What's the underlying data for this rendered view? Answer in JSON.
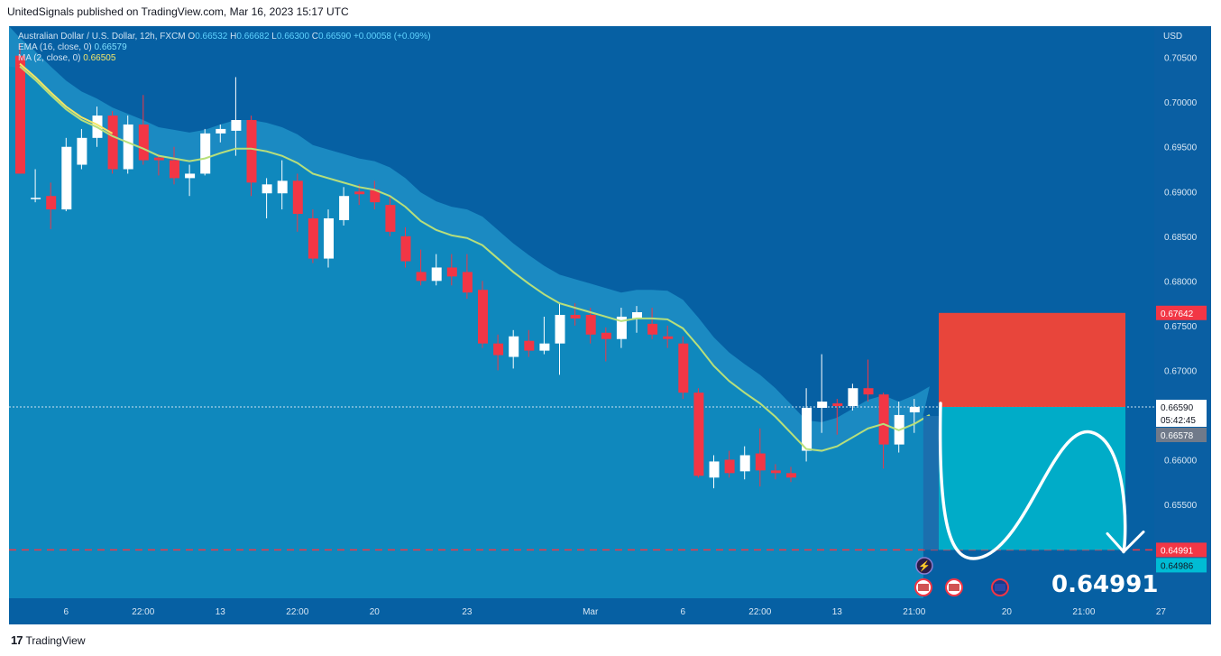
{
  "header": {
    "publish_text": "UnitedSignals published on TradingView.com, Mar 16, 2023 15:17 UTC"
  },
  "footer": {
    "brand": "TradingView"
  },
  "legend": {
    "symbol": "Australian Dollar / U.S. Dollar, 12h, FXCM",
    "o_label": "O",
    "o_value": "0.66532",
    "h_label": "H",
    "h_value": "0.66682",
    "l_label": "L",
    "l_value": "0.66300",
    "c_label": "C",
    "c_value": "0.66590",
    "change": "+0.00058 (+0.09%)",
    "ema_label": "EMA (16, close, 0)",
    "ema_value": "0.66579",
    "ma_label": "MA (2, close, 0)",
    "ma_value": "0.66505"
  },
  "colors": {
    "up": "#ffffff",
    "down": "#f23645",
    "ema": "#b7e07a",
    "ma": "#f5e663",
    "stop": "#f23645",
    "target": "#00bcd4"
  },
  "chart_data": {
    "type": "candlestick",
    "currency": "USD",
    "ylim": [
      0.6445,
      0.7085
    ],
    "y_ticks": [
      "0.70500",
      "0.70000",
      "0.69500",
      "0.69000",
      "0.68500",
      "0.68000",
      "0.67500",
      "0.67000",
      "0.66500",
      "0.66000",
      "0.65500"
    ],
    "x_ticks": [
      "6",
      "22:00",
      "13",
      "22:00",
      "20",
      "23",
      "Mar",
      "6",
      "22:00",
      "13",
      "21:00",
      "20",
      "21:00",
      "27"
    ],
    "candles": [
      {
        "o": 0.7052,
        "h": 0.7065,
        "l": 0.692,
        "c": 0.692
      },
      {
        "o": 0.6893,
        "h": 0.6925,
        "l": 0.6888,
        "c": 0.6893
      },
      {
        "o": 0.6895,
        "h": 0.691,
        "l": 0.6858,
        "c": 0.688
      },
      {
        "o": 0.688,
        "h": 0.696,
        "l": 0.6878,
        "c": 0.695
      },
      {
        "o": 0.693,
        "h": 0.697,
        "l": 0.6925,
        "c": 0.696
      },
      {
        "o": 0.696,
        "h": 0.6995,
        "l": 0.695,
        "c": 0.6985
      },
      {
        "o": 0.6985,
        "h": 0.699,
        "l": 0.692,
        "c": 0.6925
      },
      {
        "o": 0.6925,
        "h": 0.6985,
        "l": 0.692,
        "c": 0.6975
      },
      {
        "o": 0.6975,
        "h": 0.7008,
        "l": 0.693,
        "c": 0.6935
      },
      {
        "o": 0.6938,
        "h": 0.6942,
        "l": 0.6918,
        "c": 0.6935
      },
      {
        "o": 0.6935,
        "h": 0.695,
        "l": 0.6908,
        "c": 0.6915
      },
      {
        "o": 0.6915,
        "h": 0.693,
        "l": 0.6895,
        "c": 0.692
      },
      {
        "o": 0.692,
        "h": 0.697,
        "l": 0.6918,
        "c": 0.6965
      },
      {
        "o": 0.6965,
        "h": 0.6975,
        "l": 0.6955,
        "c": 0.697
      },
      {
        "o": 0.6968,
        "h": 0.7028,
        "l": 0.694,
        "c": 0.698
      },
      {
        "o": 0.698,
        "h": 0.6985,
        "l": 0.6895,
        "c": 0.691
      },
      {
        "o": 0.6898,
        "h": 0.6915,
        "l": 0.687,
        "c": 0.6908
      },
      {
        "o": 0.6898,
        "h": 0.6935,
        "l": 0.688,
        "c": 0.6912
      },
      {
        "o": 0.6912,
        "h": 0.692,
        "l": 0.6855,
        "c": 0.6875
      },
      {
        "o": 0.687,
        "h": 0.688,
        "l": 0.682,
        "c": 0.6825
      },
      {
        "o": 0.6825,
        "h": 0.688,
        "l": 0.6815,
        "c": 0.687
      },
      {
        "o": 0.6868,
        "h": 0.6905,
        "l": 0.6862,
        "c": 0.6895
      },
      {
        "o": 0.69,
        "h": 0.6908,
        "l": 0.6885,
        "c": 0.6897
      },
      {
        "o": 0.6902,
        "h": 0.6912,
        "l": 0.688,
        "c": 0.6888
      },
      {
        "o": 0.6885,
        "h": 0.6895,
        "l": 0.685,
        "c": 0.6855
      },
      {
        "o": 0.685,
        "h": 0.686,
        "l": 0.6815,
        "c": 0.6822
      },
      {
        "o": 0.681,
        "h": 0.6835,
        "l": 0.6795,
        "c": 0.68
      },
      {
        "o": 0.68,
        "h": 0.683,
        "l": 0.6795,
        "c": 0.6815
      },
      {
        "o": 0.6815,
        "h": 0.683,
        "l": 0.6795,
        "c": 0.6805
      },
      {
        "o": 0.681,
        "h": 0.683,
        "l": 0.678,
        "c": 0.6787
      },
      {
        "o": 0.679,
        "h": 0.68,
        "l": 0.6725,
        "c": 0.673
      },
      {
        "o": 0.673,
        "h": 0.674,
        "l": 0.67,
        "c": 0.6717
      },
      {
        "o": 0.6715,
        "h": 0.6745,
        "l": 0.6702,
        "c": 0.6738
      },
      {
        "o": 0.6733,
        "h": 0.6745,
        "l": 0.6715,
        "c": 0.6722
      },
      {
        "o": 0.6722,
        "h": 0.676,
        "l": 0.6718,
        "c": 0.673
      },
      {
        "o": 0.673,
        "h": 0.6775,
        "l": 0.6695,
        "c": 0.6762
      },
      {
        "o": 0.6762,
        "h": 0.6775,
        "l": 0.675,
        "c": 0.6758
      },
      {
        "o": 0.6762,
        "h": 0.677,
        "l": 0.673,
        "c": 0.674
      },
      {
        "o": 0.6742,
        "h": 0.6748,
        "l": 0.671,
        "c": 0.6735
      },
      {
        "o": 0.6735,
        "h": 0.677,
        "l": 0.6725,
        "c": 0.676
      },
      {
        "o": 0.6758,
        "h": 0.6772,
        "l": 0.6742,
        "c": 0.6765
      },
      {
        "o": 0.6752,
        "h": 0.677,
        "l": 0.6735,
        "c": 0.674
      },
      {
        "o": 0.6738,
        "h": 0.675,
        "l": 0.6725,
        "c": 0.6735
      },
      {
        "o": 0.673,
        "h": 0.6738,
        "l": 0.6668,
        "c": 0.6675
      },
      {
        "o": 0.6675,
        "h": 0.668,
        "l": 0.658,
        "c": 0.6582
      },
      {
        "o": 0.658,
        "h": 0.6605,
        "l": 0.6568,
        "c": 0.6598
      },
      {
        "o": 0.66,
        "h": 0.661,
        "l": 0.658,
        "c": 0.6585
      },
      {
        "o": 0.6587,
        "h": 0.6615,
        "l": 0.6578,
        "c": 0.6605
      },
      {
        "o": 0.6607,
        "h": 0.6635,
        "l": 0.657,
        "c": 0.6588
      },
      {
        "o": 0.6588,
        "h": 0.6595,
        "l": 0.6578,
        "c": 0.6585
      },
      {
        "o": 0.6585,
        "h": 0.6592,
        "l": 0.6575,
        "c": 0.658
      },
      {
        "o": 0.661,
        "h": 0.668,
        "l": 0.6598,
        "c": 0.6658
      },
      {
        "o": 0.6658,
        "h": 0.6718,
        "l": 0.663,
        "c": 0.6665
      },
      {
        "o": 0.6663,
        "h": 0.6668,
        "l": 0.6628,
        "c": 0.666
      },
      {
        "o": 0.666,
        "h": 0.6685,
        "l": 0.6655,
        "c": 0.668
      },
      {
        "o": 0.668,
        "h": 0.6712,
        "l": 0.6665,
        "c": 0.6673
      },
      {
        "o": 0.6673,
        "h": 0.6675,
        "l": 0.659,
        "c": 0.6617
      },
      {
        "o": 0.6617,
        "h": 0.6665,
        "l": 0.6608,
        "c": 0.665
      },
      {
        "o": 0.6653,
        "h": 0.6668,
        "l": 0.663,
        "c": 0.6659
      }
    ],
    "ema": [
      0.704,
      0.7025,
      0.7008,
      0.6992,
      0.698,
      0.6972,
      0.6962,
      0.6955,
      0.6948,
      0.694,
      0.6937,
      0.6934,
      0.6937,
      0.6943,
      0.6948,
      0.6948,
      0.6945,
      0.694,
      0.6932,
      0.692,
      0.6915,
      0.691,
      0.6905,
      0.6902,
      0.6895,
      0.6883,
      0.6867,
      0.6857,
      0.6851,
      0.6848,
      0.684,
      0.6825,
      0.681,
      0.6797,
      0.6785,
      0.6775,
      0.677,
      0.6765,
      0.676,
      0.6755,
      0.6758,
      0.6758,
      0.6757,
      0.6747,
      0.6727,
      0.6705,
      0.6688,
      0.6675,
      0.6663,
      0.6648,
      0.663,
      0.6612,
      0.661,
      0.6615,
      0.6625,
      0.6635,
      0.664,
      0.6633,
      0.664,
      0.665
    ],
    "series": [
      {
        "name": "EMA (16, close, 0)"
      },
      {
        "name": "MA (2, close, 0)"
      }
    ],
    "price_labels": {
      "stop": "0.67642",
      "last": "0.66590",
      "countdown": "05:42:45",
      "ema_last": "0.66578",
      "target": "0.64991",
      "target2": "0.64986"
    },
    "stop_value": 0.67642,
    "entry_value": 0.6659,
    "target_value": 0.64991,
    "target_text": "0.64991"
  }
}
